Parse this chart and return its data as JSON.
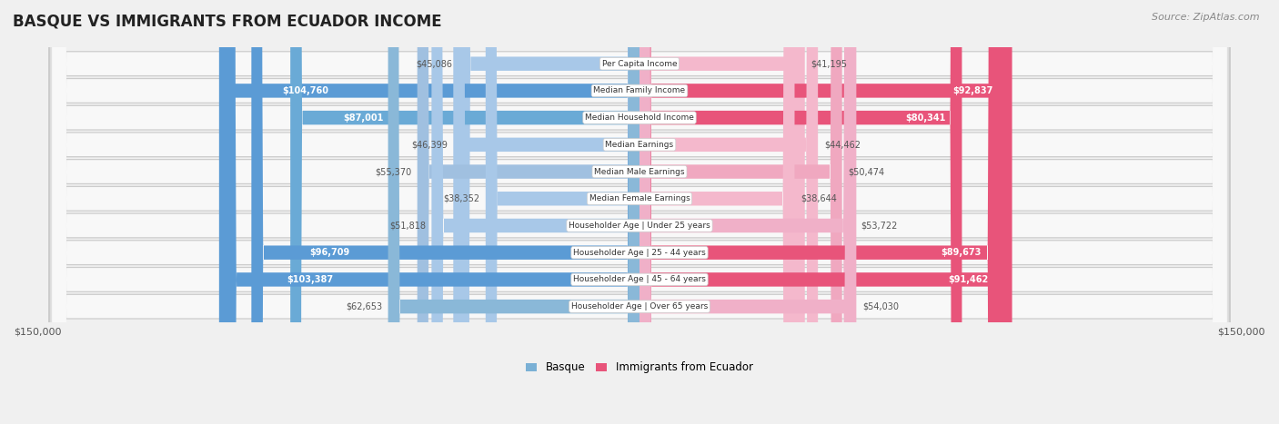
{
  "title": "BASQUE VS IMMIGRANTS FROM ECUADOR INCOME",
  "source": "Source: ZipAtlas.com",
  "categories": [
    "Per Capita Income",
    "Median Family Income",
    "Median Household Income",
    "Median Earnings",
    "Median Male Earnings",
    "Median Female Earnings",
    "Householder Age | Under 25 years",
    "Householder Age | 25 - 44 years",
    "Householder Age | 45 - 64 years",
    "Householder Age | Over 65 years"
  ],
  "basque_values": [
    45086,
    104760,
    87001,
    46399,
    55370,
    38352,
    51818,
    96709,
    103387,
    62653
  ],
  "ecuador_values": [
    41195,
    92837,
    80341,
    44462,
    50474,
    38644,
    53722,
    89673,
    91462,
    54030
  ],
  "basque_labels": [
    "$45,086",
    "$104,760",
    "$87,001",
    "$46,399",
    "$55,370",
    "$38,352",
    "$51,818",
    "$96,709",
    "$103,387",
    "$62,653"
  ],
  "ecuador_labels": [
    "$41,195",
    "$92,837",
    "$80,341",
    "$44,462",
    "$50,474",
    "$38,644",
    "$53,722",
    "$89,673",
    "$91,462",
    "$54,030"
  ],
  "max_value": 150000,
  "basque_colors": [
    "#a8c8e8",
    "#5b9bd5",
    "#6aaad6",
    "#a8c8e8",
    "#a0c0e0",
    "#a8c8e8",
    "#a8c8e8",
    "#5b9bd5",
    "#5b9bd5",
    "#8ab8d8"
  ],
  "ecuador_colors": [
    "#f4b8cc",
    "#e8547a",
    "#e8547a",
    "#f4b8cc",
    "#f0a8c0",
    "#f4b8cc",
    "#f0b0c8",
    "#e8547a",
    "#e8547a",
    "#f0b0c8"
  ],
  "background_color": "#f0f0f0",
  "row_background_light": "#f8f8f8",
  "row_background_dark": "#e8e8e8",
  "title_color": "#222222",
  "label_outside_color": "#555555",
  "label_inside_color": "#ffffff",
  "legend_basque": "Basque",
  "legend_ecuador": "Immigrants from Ecuador",
  "basque_inside": [
    false,
    true,
    true,
    false,
    false,
    false,
    false,
    true,
    true,
    false
  ],
  "ecuador_inside": [
    false,
    true,
    true,
    false,
    false,
    false,
    false,
    true,
    true,
    false
  ]
}
